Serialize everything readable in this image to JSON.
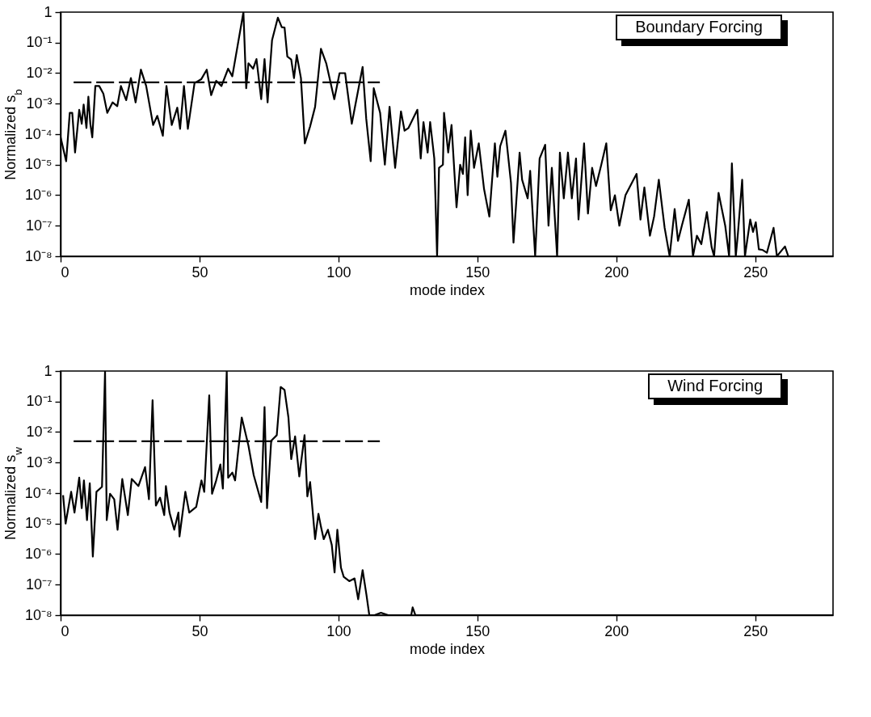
{
  "chart_data": [
    {
      "type": "line",
      "xlabel": "mode index",
      "ylabel": "Normalized s$_{b}$",
      "log": "y",
      "xlim": [
        0,
        278
      ],
      "xticks": [
        0,
        50,
        100,
        150,
        200,
        250
      ],
      "ylim": [
        1e-08,
        1
      ],
      "yticks": [
        {
          "value": 1e-08,
          "label": "10⁻⁸"
        },
        {
          "value": 1e-07,
          "label": "10⁻⁷"
        },
        {
          "value": 1e-06,
          "label": "10⁻⁶"
        },
        {
          "value": 1e-05,
          "label": "10⁻⁵"
        },
        {
          "value": 0.0001,
          "label": "10⁻⁴"
        },
        {
          "value": 0.001,
          "label": "10⁻³"
        },
        {
          "value": 0.01,
          "label": "10⁻²"
        },
        {
          "value": 0.1,
          "label": "10⁻¹"
        },
        1
      ],
      "annotations": [
        "Boundary Forcing"
      ],
      "series": [
        {
          "color": "#000000",
          "x": [
            0,
            2,
            3.3,
            4.2,
            5.2,
            6.7,
            7.6,
            8.3,
            9.3,
            10,
            10.7,
            11.4,
            12.5,
            13.9,
            15.4,
            16.8,
            18.7,
            20.4,
            21.7,
            23.6,
            25.3,
            27,
            28.9,
            30.8,
            33.3,
            34.8,
            36.8,
            38.1,
            40,
            42,
            43,
            44.4,
            45.8,
            48.2,
            50.6,
            52.6,
            54.2,
            56,
            57.9,
            60.3,
            61.8,
            65.8,
            66.8,
            67.6,
            69.3,
            70.5,
            72.2,
            73.4,
            74.5,
            76.1,
            78.2,
            79.6,
            80.6,
            81.6,
            83,
            84,
            85,
            86.5,
            87.9,
            89.8,
            91.6,
            93.7,
            95.6,
            98.5,
            100.4,
            102.4,
            104.8,
            108.7,
            110,
            111.6,
            112.7,
            115,
            116.7,
            118.4,
            120.4,
            122.5,
            123.8,
            125.2,
            128.4,
            129.6,
            130.6,
            132.1,
            133,
            134.5,
            135.5,
            136.2,
            137.6,
            138,
            139.5,
            140.7,
            142.5,
            143.8,
            144.8,
            145.6,
            146.5,
            147.6,
            148.8,
            150.5,
            152.4,
            154.3,
            156.3,
            157.2,
            158.2,
            160.1,
            162.1,
            163,
            165.2,
            166.1,
            168.1,
            169,
            170.8,
            172.4,
            174.4,
            175.6,
            176.8,
            178.7,
            179.7,
            181.1,
            182.6,
            184,
            185.5,
            186.4,
            188.4,
            189.8,
            191.3,
            192.7,
            194.6,
            196.4,
            198,
            199.5,
            201.1,
            203.3,
            207.3,
            208.7,
            210.1,
            212.1,
            213.6,
            215.3,
            217.4,
            219.2,
            221,
            222.2,
            223.7,
            226.1,
            227.6,
            229,
            230.6,
            232.6,
            234.3,
            235.2,
            236.8,
            239.2,
            240.6,
            241.6,
            243,
            243.7,
            245.3,
            246.3,
            248.2,
            249.2,
            250.2,
            251.3,
            252.7,
            254.2,
            256.6,
            257.8,
            260.7,
            261.9,
            278
          ],
          "values": [
            8e-05,
            1.3e-05,
            0.0005,
            0.0005,
            2.5e-05,
            0.00063,
            0.00022,
            0.00093,
            0.00016,
            0.0017,
            0.00022,
            7.9e-05,
            0.0038,
            0.0038,
            0.0021,
            0.0005,
            0.0011,
            0.00083,
            0.0038,
            0.0013,
            0.0069,
            0.0011,
            0.013,
            0.0038,
            0.0002,
            0.0004,
            8.9e-05,
            0.0038,
            0.0002,
            0.00074,
            0.00015,
            0.0038,
            0.00015,
            0.0047,
            0.0063,
            0.013,
            0.0019,
            0.0056,
            0.0038,
            0.014,
            0.0079,
            1,
            0.0032,
            0.021,
            0.014,
            0.029,
            0.0014,
            0.029,
            0.0011,
            0.12,
            0.66,
            0.32,
            0.31,
            0.035,
            0.028,
            0.0069,
            0.039,
            0.0069,
            5e-05,
            0.00018,
            0.00079,
            0.063,
            0.021,
            0.0014,
            0.01,
            0.01,
            0.00022,
            0.016,
            0.00032,
            1.3e-05,
            0.0032,
            0.0005,
            1e-05,
            0.00079,
            7.9e-06,
            0.00056,
            0.00013,
            0.00016,
            0.00063,
            1.6e-05,
            0.00025,
            2.5e-05,
            0.00025,
            1.6e-05,
            1e-08,
            7.9e-06,
            1e-05,
            0.0005,
            2.5e-05,
            0.0002,
            4e-07,
            1e-05,
            5e-06,
            7.9e-05,
            1e-06,
            0.00013,
            7.9e-06,
            5e-05,
            1.6e-06,
            2e-07,
            5e-05,
            4e-06,
            4e-05,
            0.00013,
            2.5e-06,
            2.8e-08,
            2.5e-05,
            3.2e-06,
            7.9e-07,
            6.3e-06,
            1e-08,
            1.6e-05,
            4.5e-05,
            1e-07,
            7.9e-06,
            1e-08,
            2.5e-05,
            7.9e-07,
            2.5e-05,
            7.9e-07,
            1.6e-05,
            1.6e-07,
            5e-05,
            2.5e-07,
            7.9e-06,
            2e-06,
            1e-05,
            5e-05,
            3.2e-07,
            1e-06,
            1e-07,
            1e-06,
            5e-06,
            1.6e-07,
            1.8e-06,
            4.7e-08,
            2e-07,
            3.2e-06,
            8.5e-08,
            1e-08,
            3.5e-07,
            3.2e-08,
            1.1e-07,
            7.1e-07,
            1e-08,
            4.7e-08,
            2.5e-08,
            2.8e-07,
            2e-08,
            1e-08,
            1.2e-06,
            1e-07,
            1e-08,
            1.1e-05,
            1e-08,
            4.7e-08,
            3.2e-06,
            1e-08,
            1.6e-07,
            6.3e-08,
            1.3e-07,
            1.7e-08,
            1.6e-08,
            1.3e-08,
            8.5e-08,
            1e-08,
            2.1e-08,
            1e-08,
            1e-08
          ]
        },
        {
          "type": "line",
          "line_style": "dashed",
          "color": "#000000",
          "x": [
            4.7,
            114.9
          ],
          "values": [
            0.005,
            0.005
          ]
        }
      ]
    },
    {
      "type": "line",
      "xlabel": "mode index",
      "ylabel": "Normalized s$_{w}$",
      "log": "y",
      "xlim": [
        0,
        278
      ],
      "xticks": [
        0,
        50,
        100,
        150,
        200,
        250
      ],
      "ylim": [
        1e-08,
        1
      ],
      "yticks": [
        {
          "value": 1e-08,
          "label": "10⁻⁸"
        },
        {
          "value": 1e-07,
          "label": "10⁻⁷"
        },
        {
          "value": 1e-06,
          "label": "10⁻⁶"
        },
        {
          "value": 1e-05,
          "label": "10⁻⁵"
        },
        {
          "value": 0.0001,
          "label": "10⁻⁴"
        },
        {
          "value": 0.001,
          "label": "10⁻³"
        },
        {
          "value": 0.01,
          "label": "10⁻²"
        },
        {
          "value": 0.1,
          "label": "10⁻¹"
        },
        1
      ],
      "annotations": [
        "Wind Forcing"
      ],
      "series": [
        {
          "color": "#000000",
          "x": [
            0.9,
            1.8,
            3.8,
            5,
            6.7,
            7.6,
            8.4,
            9.5,
            10.5,
            11.6,
            12.9,
            14.9,
            16,
            16.6,
            17.8,
            19.3,
            20.5,
            22.2,
            24.2,
            25.6,
            28,
            30.4,
            31.8,
            33.1,
            34.3,
            35.8,
            37.3,
            37.9,
            39.2,
            40.9,
            42.4,
            42.8,
            44.9,
            46.3,
            48.8,
            50.7,
            51.7,
            53.5,
            54.5,
            56,
            57.5,
            58.4,
            59.8,
            60.3,
            61.8,
            62.8,
            65.2,
            67.6,
            69.5,
            72.2,
            73.4,
            74.3,
            75.8,
            77.8,
            79.2,
            80.6,
            82,
            83,
            84.4,
            85.9,
            87.8,
            88.8,
            89.8,
            91.6,
            92.8,
            93.7,
            94.7,
            96.2,
            97.6,
            98.6,
            99.6,
            100.9,
            101.9,
            103.9,
            105.8,
            107.1,
            108.7,
            110.1,
            111.1,
            113,
            115.3,
            117.9,
            126.2,
            126.7,
            127.7,
            278
          ],
          "values": [
            8.5e-05,
            1e-05,
            0.00011,
            2.3e-05,
            0.00032,
            3.2e-05,
            0.00026,
            1.3e-05,
            0.00021,
            8.3e-07,
            0.00011,
            0.00016,
            1,
            1.3e-05,
            9.5e-05,
            6.3e-05,
            6.3e-06,
            0.00029,
            1.9e-05,
            0.00029,
            0.00017,
            0.00071,
            6.3e-05,
            0.11,
            3.9e-05,
            7.1e-05,
            1.9e-05,
            0.00017,
            2.3e-05,
            6.3e-06,
            2.3e-05,
            3.8e-06,
            0.00011,
            2.3e-05,
            3.5e-05,
            0.00026,
            0.00011,
            0.16,
            9.5e-05,
            0.00026,
            0.00087,
            0.00014,
            1,
            0.00032,
            0.00047,
            0.00026,
            0.03,
            0.0036,
            0.00039,
            5.1e-05,
            0.066,
            3.2e-05,
            0.0052,
            0.0079,
            0.3,
            0.24,
            0.03,
            0.0013,
            0.0072,
            0.00035,
            0.0079,
            7.8e-05,
            0.00023,
            3.1e-06,
            2.1e-05,
            7.9e-06,
            3.1e-06,
            6.3e-06,
            2e-06,
            2.5e-07,
            6.3e-06,
            3.6e-07,
            1.8e-07,
            1.3e-07,
            1.6e-07,
            3.3e-08,
            3e-07,
            4.5e-08,
            1e-08,
            1e-08,
            1.2e-08,
            1e-08,
            1e-08,
            1.8e-08,
            1e-08,
            1e-08
          ]
        },
        {
          "type": "line",
          "line_style": "dashed",
          "color": "#000000",
          "x": [
            4.7,
            114.9
          ],
          "values": [
            0.005,
            0.005
          ]
        }
      ]
    }
  ]
}
